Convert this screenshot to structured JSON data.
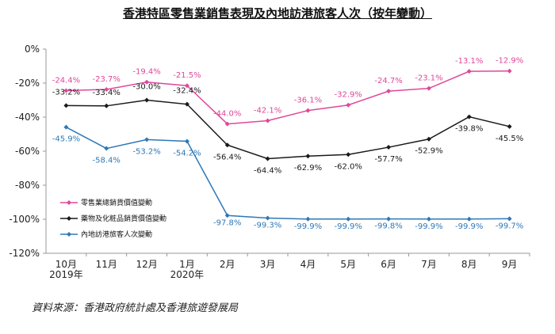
{
  "chart_data": {
    "type": "line",
    "title": "香港特區零售業銷售表現及內地訪港旅客人次（按年變動）",
    "categories": [
      "10月",
      "11月",
      "12月",
      "1月",
      "2月",
      "3月",
      "4月",
      "5月",
      "6月",
      "7月",
      "8月",
      "9月"
    ],
    "category_sublabels": [
      "2019年",
      "",
      "",
      "2020年",
      "",
      "",
      "",
      "",
      "",
      "",
      "",
      ""
    ],
    "y_ticks": [
      "0%",
      "-20%",
      "-40%",
      "-60%",
      "-80%",
      "-100%",
      "-120%"
    ],
    "ylim": [
      -120,
      0
    ],
    "grid": false,
    "legend_position": "lower-left",
    "series": [
      {
        "name": "零售業總銷貨價值變動",
        "color": "#e0479b",
        "values": [
          -24.4,
          -23.7,
          -19.4,
          -21.5,
          -44.0,
          -42.1,
          -36.1,
          -32.9,
          -24.7,
          -23.1,
          -13.1,
          -12.9
        ],
        "labels": [
          "-24.4%",
          "-23.7%",
          "-19.4%",
          "-21.5%",
          "-44.0%",
          "-42.1%",
          "-36.1%",
          "-32.9%",
          "-24.7%",
          "-23.1%",
          "-13.1%",
          "-12.9%"
        ]
      },
      {
        "name": "藥物及化粧品銷貨價值變動",
        "color": "#1a1a1a",
        "values": [
          -33.2,
          -33.4,
          -30.0,
          -32.4,
          -56.4,
          -64.4,
          -62.9,
          -62.0,
          -57.7,
          -52.9,
          -39.8,
          -45.5
        ],
        "labels": [
          "-33.2%",
          "-33.4%",
          "-30.0%",
          "-32.4%",
          "-56.4%",
          "-64.4%",
          "-62.9%",
          "-62.0%",
          "-57.7%",
          "-52.9%",
          "-39.8%",
          "-45.5%"
        ]
      },
      {
        "name": "內地訪港旅客人次變動",
        "color": "#2e78b7",
        "values": [
          -45.9,
          -58.4,
          -53.2,
          -54.2,
          -97.8,
          -99.3,
          -99.9,
          -99.9,
          -99.8,
          -99.9,
          -99.9,
          -99.7
        ],
        "labels": [
          "-45.9%",
          "-58.4%",
          "-53.2%",
          "-54.2%",
          "-97.8%",
          "-99.3%",
          "-99.9%",
          "-99.9%",
          "-99.8%",
          "-99.9%",
          "-99.9%",
          "-99.7%"
        ]
      }
    ]
  },
  "source_note": "資料來源：香港政府統計處及香港旅遊發展局"
}
